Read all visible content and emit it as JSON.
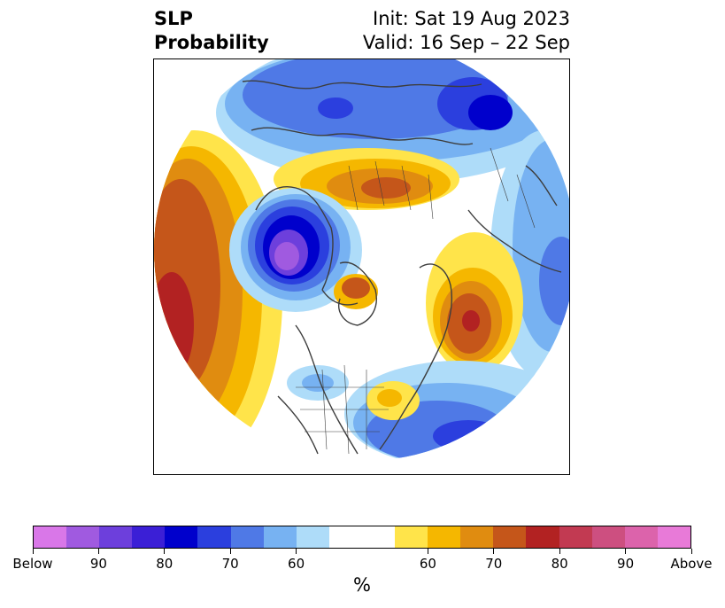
{
  "title": {
    "left_line1": "SLP",
    "left_line2": "Probability",
    "right_line1": "Init: Sat 19 Aug 2023",
    "right_line2": "Valid: 16 Sep – 22 Sep"
  },
  "colorbar": {
    "colors": [
      "#d977e8",
      "#a05ae0",
      "#6d3fdc",
      "#3b1fd6",
      "#0000cc",
      "#2b3fde",
      "#4f79e6",
      "#77b2f2",
      "#aedcf9",
      "#ffffff",
      "#ffffff",
      "#ffe44a",
      "#f5b700",
      "#e08c10",
      "#c5561a",
      "#b22222",
      "#c23a52",
      "#cd4f80",
      "#dc63ab",
      "#e87ad8"
    ],
    "tick_labels": [
      "Below",
      "90",
      "80",
      "70",
      "60",
      "60",
      "70",
      "80",
      "90",
      "Above"
    ],
    "units": "%"
  },
  "palette": {
    "below_deep": "#8a4fe0",
    "below_strong": "#1a1acd",
    "below_mid": "#4f79e6",
    "below_light": "#77b2f2",
    "below_pale": "#aedcf9",
    "above_pale": "#ffe44a",
    "above_light": "#f5b700",
    "above_mid": "#e08c10",
    "above_strong": "#c5561a",
    "above_deep": "#b22222",
    "coast": "#3d3d3d"
  }
}
